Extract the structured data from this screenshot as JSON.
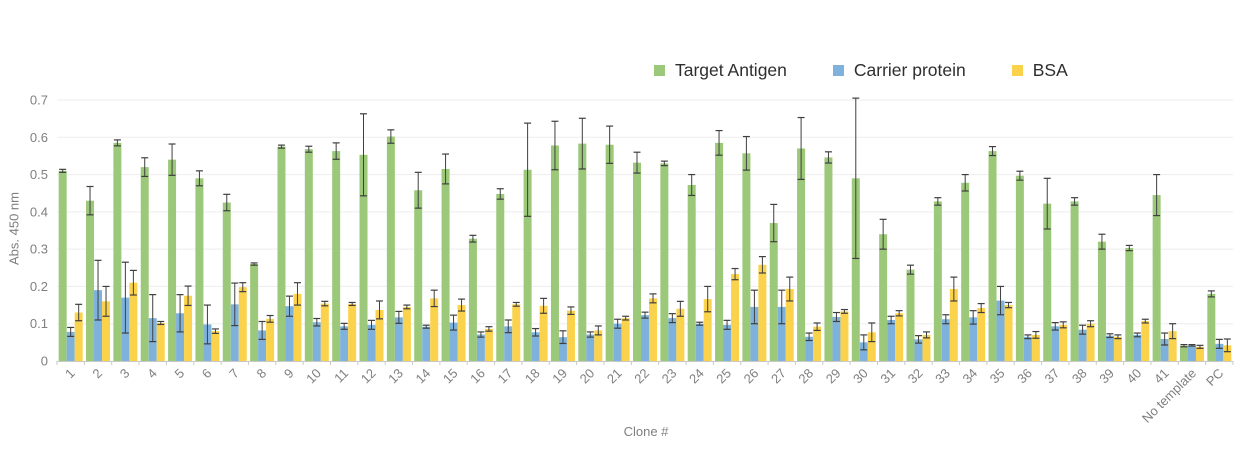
{
  "chart_data": {
    "type": "bar",
    "title": "",
    "xlabel": "Clone #",
    "ylabel": "Abs. 450 nm",
    "ylim": [
      0,
      0.7
    ],
    "ytick_step": 0.1,
    "grid": "horizontal",
    "legend_position": "top",
    "categories": [
      "1",
      "2",
      "3",
      "4",
      "5",
      "6",
      "7",
      "8",
      "9",
      "10",
      "11",
      "12",
      "13",
      "14",
      "15",
      "16",
      "17",
      "18",
      "19",
      "20",
      "21",
      "22",
      "23",
      "24",
      "25",
      "26",
      "27",
      "28",
      "29",
      "30",
      "31",
      "32",
      "33",
      "34",
      "35",
      "36",
      "37",
      "38",
      "39",
      "40",
      "41",
      "No template",
      "PC"
    ],
    "series": [
      {
        "name": "Target Antigen",
        "color": "#9cc87a",
        "values": [
          0.51,
          0.43,
          0.585,
          0.52,
          0.54,
          0.49,
          0.425,
          0.26,
          0.575,
          0.568,
          0.563,
          0.553,
          0.602,
          0.458,
          0.515,
          0.328,
          0.448,
          0.513,
          0.578,
          0.583,
          0.58,
          0.532,
          0.53,
          0.472,
          0.585,
          0.557,
          0.37,
          0.57,
          0.546,
          0.49,
          0.34,
          0.245,
          0.428,
          0.478,
          0.563,
          0.497,
          0.422,
          0.428,
          0.32,
          0.303,
          0.445,
          0.041,
          0.18
        ],
        "errors": [
          0.004,
          0.038,
          0.008,
          0.025,
          0.042,
          0.02,
          0.022,
          0.003,
          0.004,
          0.008,
          0.022,
          0.11,
          0.018,
          0.048,
          0.04,
          0.009,
          0.014,
          0.125,
          0.065,
          0.068,
          0.05,
          0.028,
          0.006,
          0.028,
          0.033,
          0.045,
          0.05,
          0.083,
          0.015,
          0.215,
          0.04,
          0.012,
          0.01,
          0.022,
          0.012,
          0.012,
          0.068,
          0.01,
          0.02,
          0.007,
          0.055,
          0.003,
          0.008
        ]
      },
      {
        "name": "Carrier protein",
        "color": "#7eb2dc",
        "values": [
          0.078,
          0.19,
          0.17,
          0.115,
          0.128,
          0.098,
          0.152,
          0.082,
          0.147,
          0.104,
          0.093,
          0.097,
          0.117,
          0.092,
          0.103,
          0.071,
          0.093,
          0.077,
          0.064,
          0.071,
          0.1,
          0.123,
          0.115,
          0.1,
          0.097,
          0.145,
          0.145,
          0.065,
          0.118,
          0.05,
          0.11,
          0.058,
          0.112,
          0.117,
          0.162,
          0.065,
          0.093,
          0.084,
          0.068,
          0.07,
          0.059,
          0.042,
          0.046
        ],
        "errors": [
          0.012,
          0.08,
          0.095,
          0.063,
          0.05,
          0.052,
          0.057,
          0.024,
          0.027,
          0.01,
          0.008,
          0.012,
          0.016,
          0.004,
          0.02,
          0.007,
          0.017,
          0.01,
          0.017,
          0.007,
          0.012,
          0.008,
          0.012,
          0.004,
          0.012,
          0.045,
          0.045,
          0.01,
          0.012,
          0.02,
          0.01,
          0.01,
          0.012,
          0.018,
          0.038,
          0.005,
          0.01,
          0.012,
          0.005,
          0.005,
          0.016,
          0.002,
          0.012
        ]
      },
      {
        "name": "BSA",
        "color": "#fbd24b",
        "values": [
          0.13,
          0.16,
          0.21,
          0.102,
          0.175,
          0.08,
          0.198,
          0.113,
          0.18,
          0.154,
          0.153,
          0.137,
          0.145,
          0.168,
          0.15,
          0.086,
          0.152,
          0.148,
          0.135,
          0.082,
          0.115,
          0.168,
          0.14,
          0.166,
          0.233,
          0.258,
          0.193,
          0.092,
          0.133,
          0.077,
          0.128,
          0.07,
          0.193,
          0.142,
          0.15,
          0.07,
          0.097,
          0.1,
          0.065,
          0.107,
          0.08,
          0.038,
          0.042
        ],
        "errors": [
          0.022,
          0.04,
          0.033,
          0.004,
          0.026,
          0.006,
          0.012,
          0.009,
          0.03,
          0.006,
          0.004,
          0.024,
          0.005,
          0.022,
          0.016,
          0.006,
          0.005,
          0.02,
          0.01,
          0.012,
          0.005,
          0.012,
          0.02,
          0.034,
          0.015,
          0.022,
          0.032,
          0.01,
          0.005,
          0.025,
          0.007,
          0.008,
          0.032,
          0.012,
          0.007,
          0.009,
          0.008,
          0.008,
          0.005,
          0.005,
          0.02,
          0.004,
          0.017
        ]
      }
    ],
    "colors": {
      "error_bar": "#3f3f3f",
      "grid_line": "#ededed",
      "axis_line": "#c9c9c9",
      "tick_label": "#7f7f7f",
      "legend_text": "#2e2e2e"
    }
  }
}
